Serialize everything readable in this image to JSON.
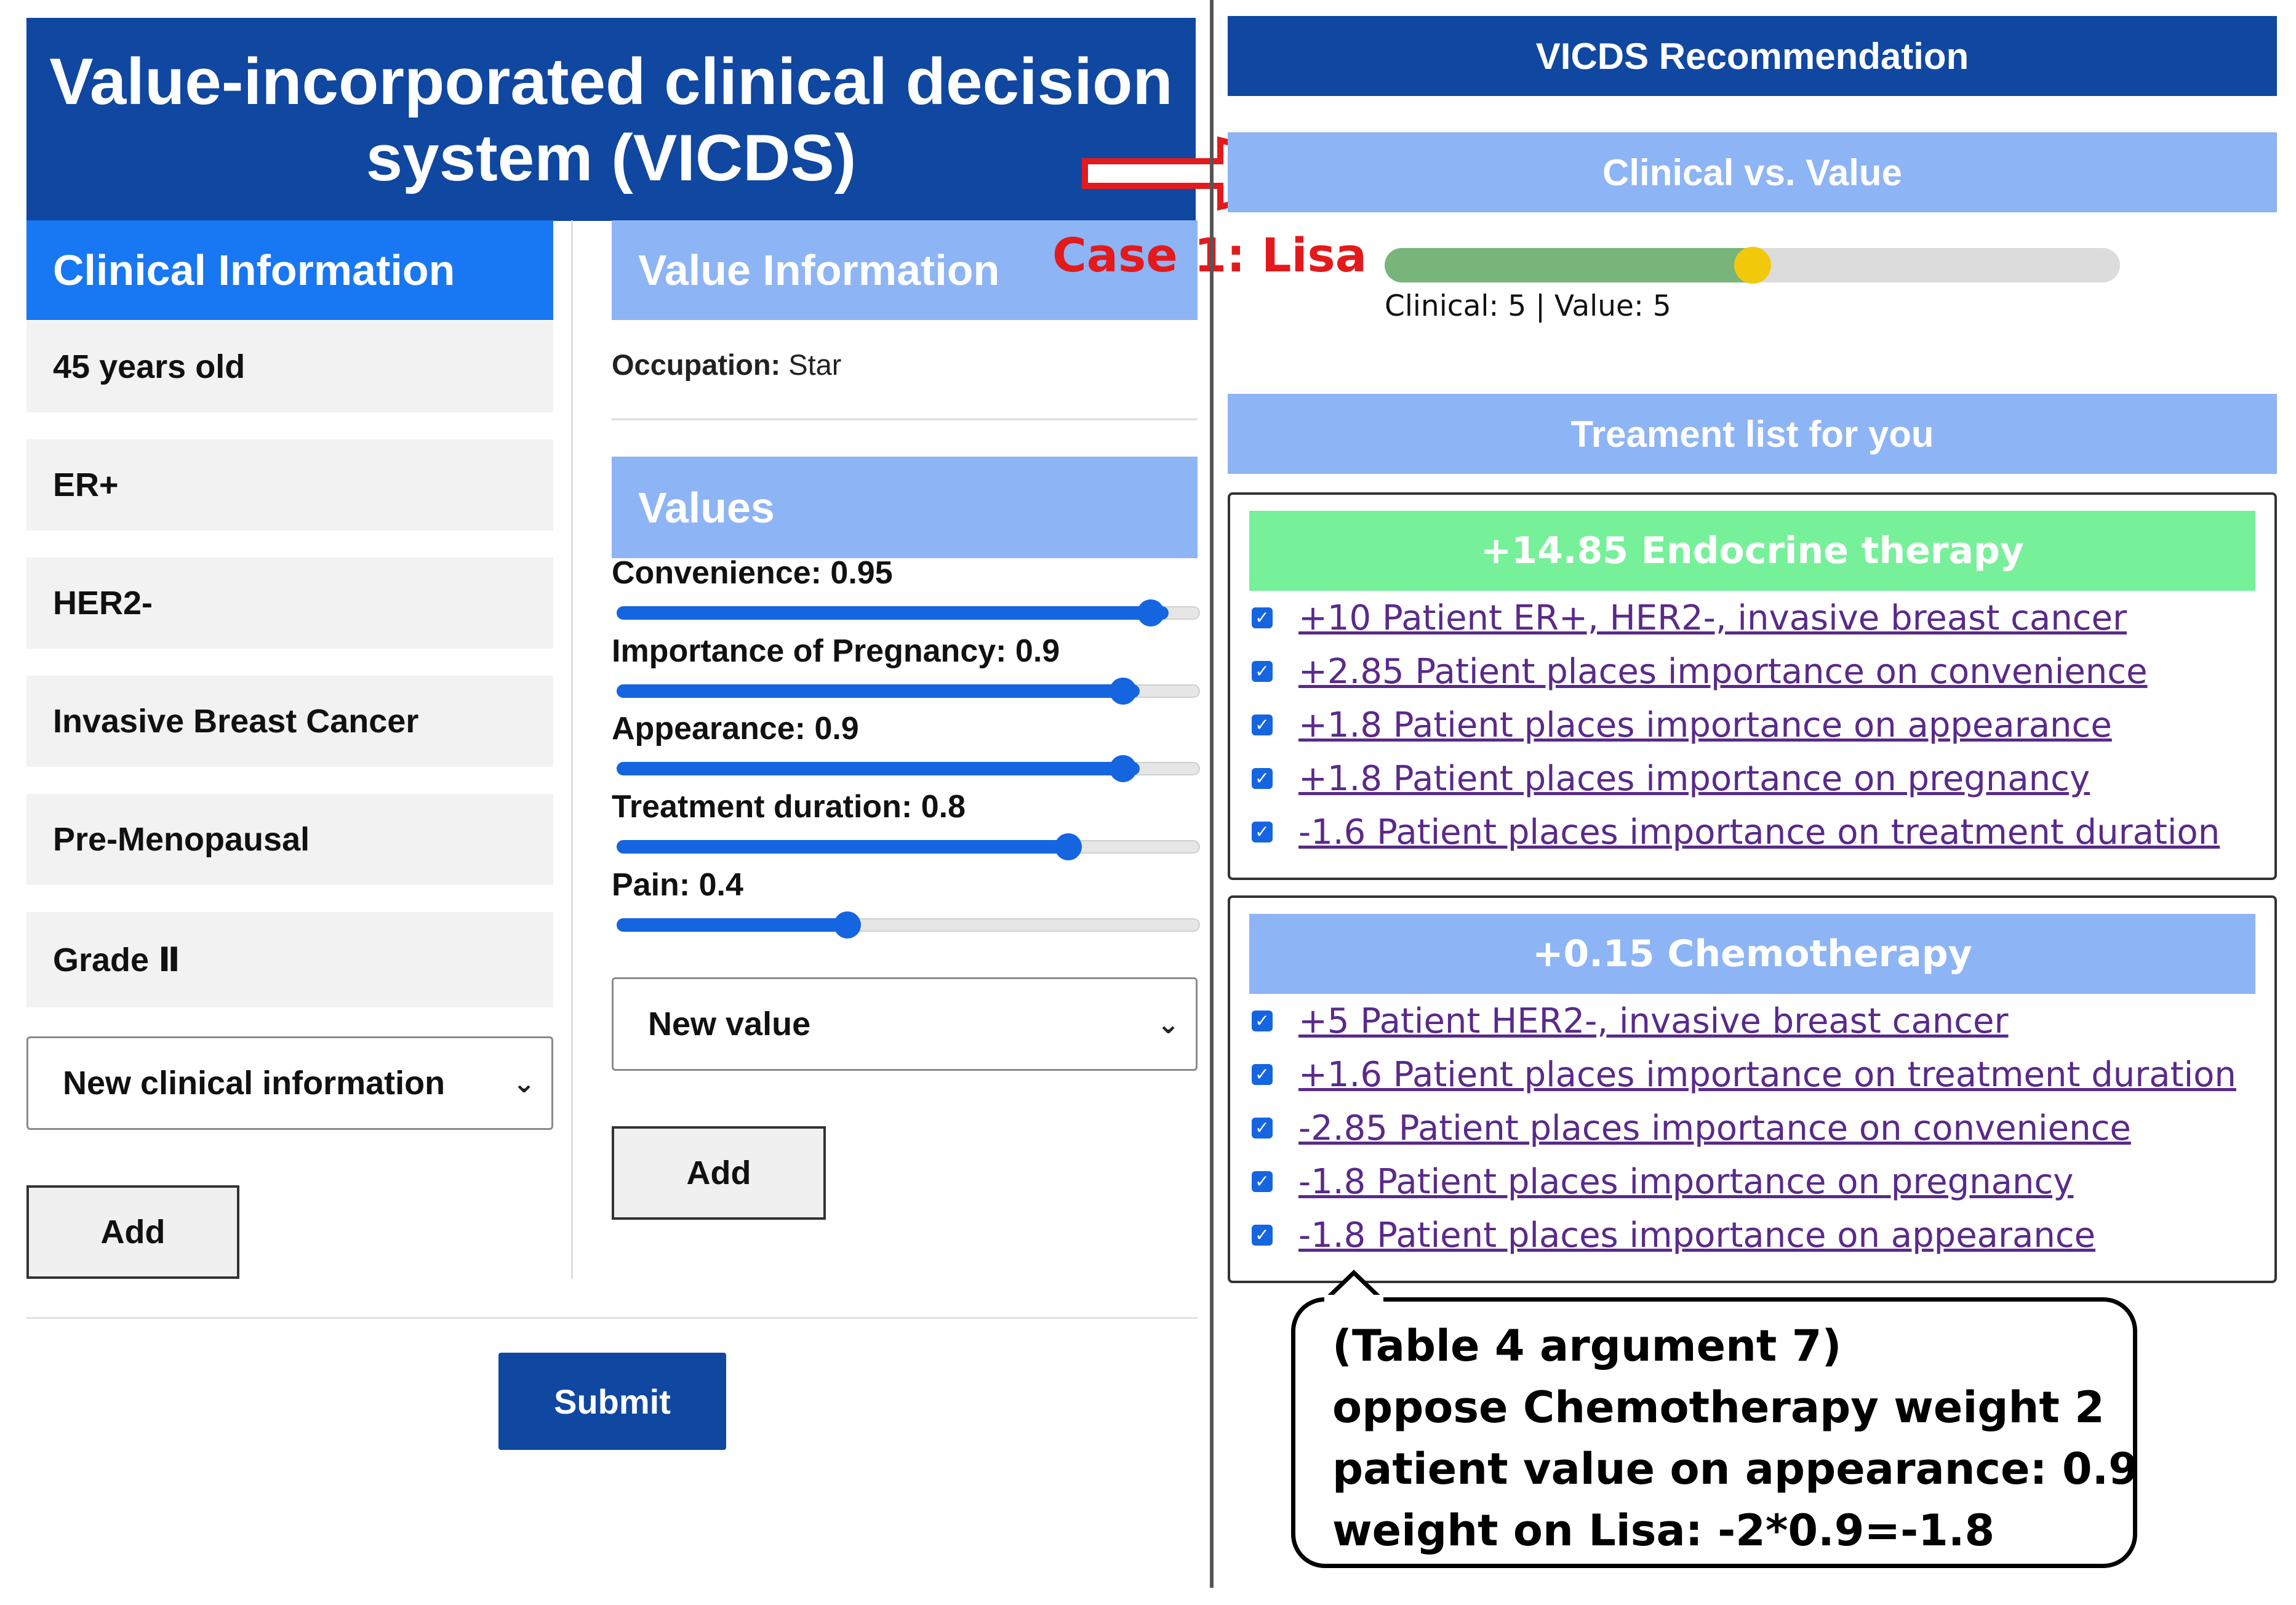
{
  "title": "Value-incorporated clinical decision system (VICDS)",
  "case_label": "Case 1:  Lisa",
  "clinical": {
    "header": "Clinical Information",
    "items": [
      "45 years old",
      "ER+",
      "HER2-",
      "Invasive Breast Cancer",
      "Pre-Menopausal",
      "Grade Ⅱ"
    ],
    "select_value": "New clinical information",
    "add_label": "Add"
  },
  "value_info": {
    "header": "Value Information",
    "occupation_label": "Occupation:",
    "occupation_value": "Star",
    "values_header": "Values",
    "sliders": [
      {
        "label": "Convenience: 0.95",
        "value": 0.95
      },
      {
        "label": "Importance of Pregnancy: 0.9",
        "value": 0.9
      },
      {
        "label": "Appearance: 0.9",
        "value": 0.9
      },
      {
        "label": "Treatment duration: 0.8",
        "value": 0.8
      },
      {
        "label": "Pain: 0.4",
        "value": 0.4
      }
    ],
    "select_value": "New value",
    "add_label": "Add"
  },
  "submit_label": "Submit",
  "recommendation": {
    "header": "VICDS Recommendation",
    "cv_header": "Clinical vs. Value",
    "cv_level": 0.5,
    "cv_text": "Clinical: 5 | Value: 5",
    "treatment_header": "Treament list for you",
    "treatments": [
      {
        "title": "+14.85 Endocrine therapy",
        "color": "#77f09a",
        "reasons": [
          "+10 Patient ER+, HER2-, invasive breast cancer",
          "+2.85 Patient places importance on convenience",
          "+1.8 Patient places importance on appearance",
          "+1.8 Patient places importance on pregnancy",
          "-1.6 Patient places importance on treatment duration"
        ]
      },
      {
        "title": "+0.15 Chemotherapy",
        "color": "#8db4f5",
        "reasons": [
          "+5 Patient HER2-, invasive breast cancer",
          "+1.6 Patient places importance on treatment duration",
          "-2.85 Patient places importance on convenience",
          "-1.8 Patient places importance on pregnancy",
          "-1.8 Patient places importance on appearance"
        ]
      }
    ]
  },
  "callout": [
    "(Table 4 argument 7)",
    "oppose Chemotherapy weight 2",
    "patient value on appearance: 0.9",
    "weight on Lisa: -2*0.9=-1.8"
  ],
  "colors": {
    "brand_blue": "#0f47a1",
    "clinical_blue": "#1877f2",
    "light_blue": "#8db4f5",
    "arrow_red": "#e31a1c",
    "slider_blue": "#1565e0",
    "cv_green": "#78b57a",
    "cv_thumb": "#f2c90a"
  }
}
